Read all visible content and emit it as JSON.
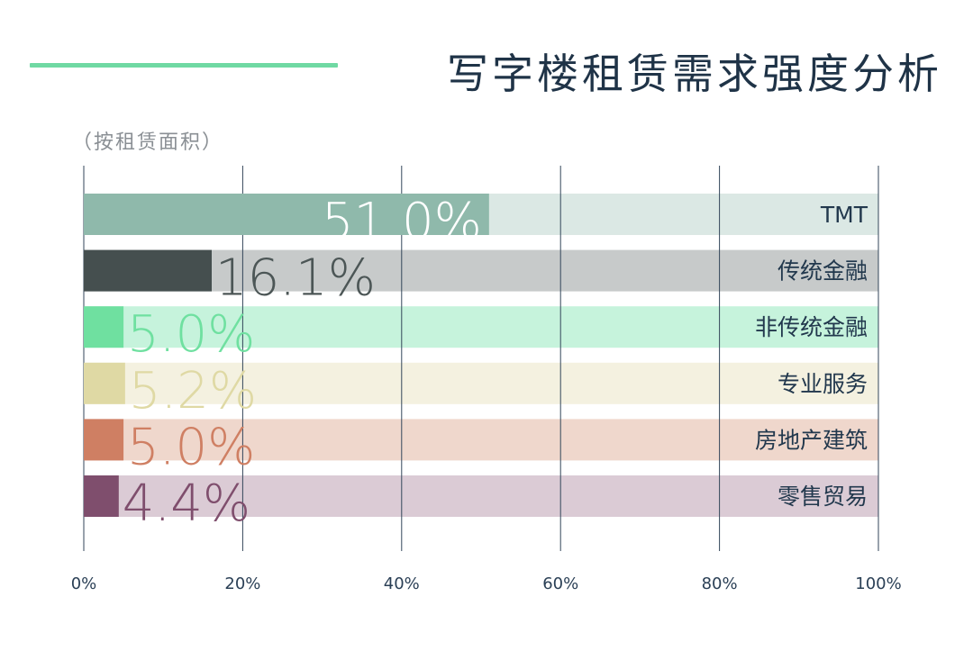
{
  "title": "写字楼租赁需求强度分析",
  "subtitle": "（按租赁面积）",
  "chart_data": {
    "type": "bar",
    "orientation": "horizontal",
    "title": "写字楼租赁需求强度分析",
    "subtitle": "（按租赁面积）",
    "xlim": [
      0,
      100
    ],
    "x_ticks": [
      "0%",
      "20%",
      "40%",
      "60%",
      "80%",
      "100%"
    ],
    "grid": true,
    "categories": [
      "TMT",
      "传统金融",
      "非传统金融",
      "专业服务",
      "房地产建筑",
      "零售贸易"
    ],
    "values": [
      51.0,
      16.1,
      5.0,
      5.2,
      5.0,
      4.4
    ],
    "value_labels": [
      "51.0%",
      "16.1%",
      "5.0%",
      "5.2%",
      "5.0%",
      "4.4%"
    ],
    "colors": [
      "#8fb9ab",
      "#454f4f",
      "#6fe0a0",
      "#dfd9a4",
      "#cf7f63",
      "#7f4e6d"
    ],
    "track_colors": [
      "#dbe8e4",
      "#c7caca",
      "#c6f3dc",
      "#f4f1e0",
      "#efd7cc",
      "#dbcbd5"
    ],
    "label_colors": [
      "#ffffff",
      "#4c5656",
      "#6fe0a0",
      "#dfd9a4",
      "#cf7f63",
      "#7f4e6d"
    ]
  }
}
